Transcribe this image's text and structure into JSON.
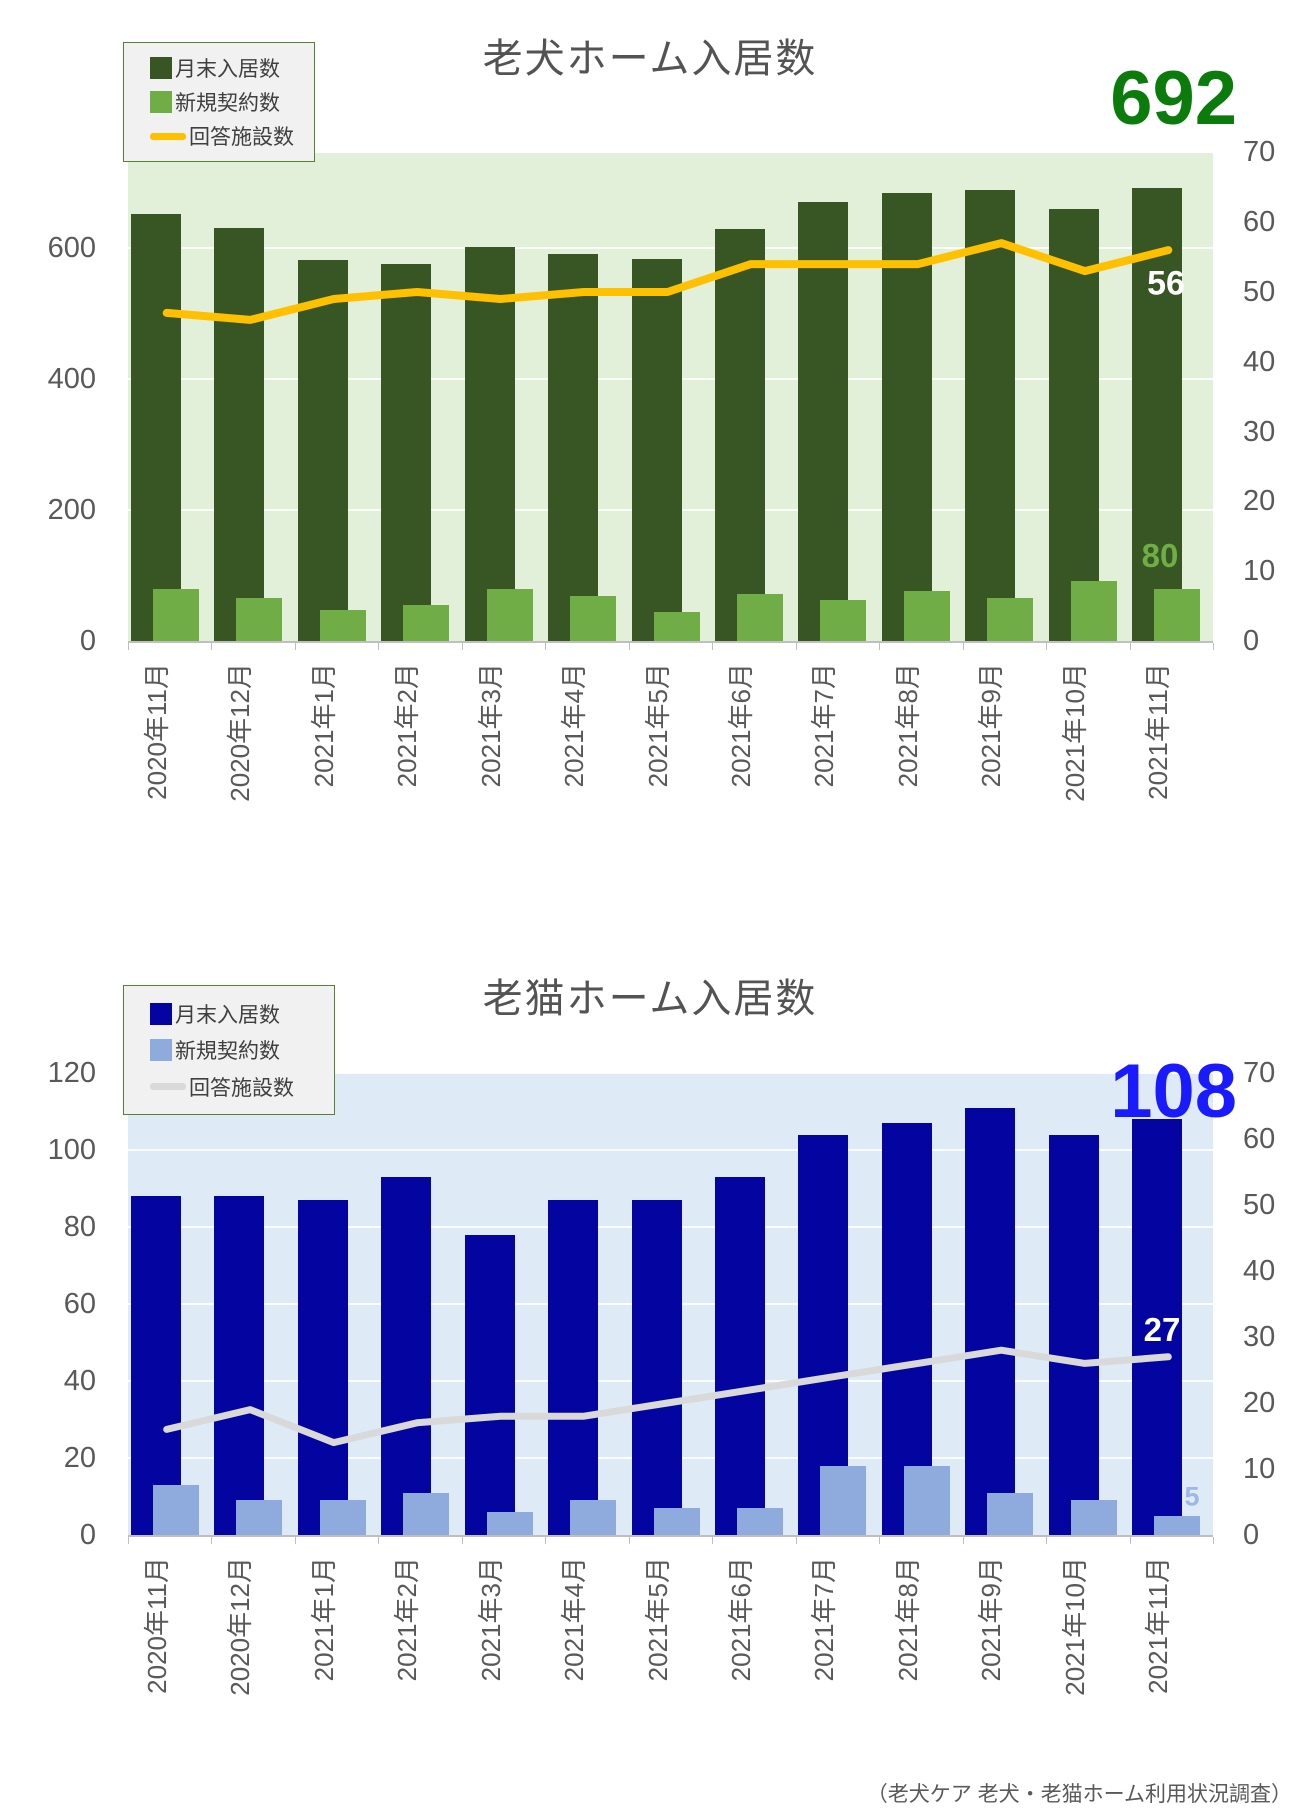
{
  "footer": {
    "source": "（老犬ケア 老犬・老猫ホーム利用状況調査）"
  },
  "chart_data": [
    {
      "id": "dog-home-chart",
      "type": "bar",
      "title": "老犬ホーム入居数",
      "plot_bg": "#E2EFD9",
      "categories": [
        "2020年11月",
        "2020年12月",
        "2021年1月",
        "2021年2月",
        "2021年3月",
        "2021年4月",
        "2021年5月",
        "2021年6月",
        "2021年7月",
        "2021年8月",
        "2021年9月",
        "2021年10月",
        "2021年11月"
      ],
      "series": [
        {
          "name": "月末入居数",
          "type": "bar",
          "axis": "left",
          "color": "#375623",
          "values": [
            652,
            630,
            581,
            576,
            602,
            591,
            583,
            629,
            670,
            684,
            688,
            660,
            692
          ]
        },
        {
          "name": "新規契約数",
          "type": "bar",
          "axis": "left",
          "color": "#70AD47",
          "values": [
            80,
            65,
            47,
            55,
            80,
            69,
            44,
            72,
            62,
            76,
            66,
            91,
            80
          ]
        },
        {
          "name": "回答施設数",
          "type": "line",
          "axis": "right",
          "color": "#FFC000",
          "values": [
            47,
            46,
            49,
            50,
            49,
            50,
            50,
            54,
            54,
            54,
            57,
            53,
            56
          ]
        }
      ],
      "left_axis": {
        "ticks": [
          0,
          200,
          400,
          600
        ],
        "max": 700
      },
      "right_axis": {
        "ticks": [
          0,
          10,
          20,
          30,
          40,
          50,
          60,
          70
        ],
        "max": 70
      },
      "grid_values": [
        200,
        400,
        600
      ],
      "legend_position": "top-left",
      "annotations": [
        {
          "name": "latest-occupancy-callout",
          "text": "692",
          "color": "#0B7B0B"
        },
        {
          "name": "facilities-last-label",
          "text": "56",
          "color": "#FFFFFF"
        },
        {
          "name": "contracts-last-label",
          "text": "80",
          "color": "#70AD47"
        }
      ]
    },
    {
      "id": "cat-home-chart",
      "type": "bar",
      "title": "老猫ホーム入居数",
      "plot_bg": "#DEEBF7",
      "categories": [
        "2020年11月",
        "2020年12月",
        "2021年1月",
        "2021年2月",
        "2021年3月",
        "2021年4月",
        "2021年5月",
        "2021年6月",
        "2021年7月",
        "2021年8月",
        "2021年9月",
        "2021年10月",
        "2021年11月"
      ],
      "series": [
        {
          "name": "月末入居数",
          "type": "bar",
          "axis": "left",
          "color": "#0404A0",
          "values": [
            88,
            88,
            87,
            93,
            78,
            87,
            87,
            93,
            104,
            107,
            111,
            104,
            108
          ]
        },
        {
          "name": "新規契約数",
          "type": "bar",
          "axis": "left",
          "color": "#8FAADC",
          "values": [
            13,
            9,
            9,
            11,
            6,
            9,
            7,
            7,
            18,
            18,
            11,
            9,
            5
          ]
        },
        {
          "name": "回答施設数",
          "type": "line",
          "axis": "right",
          "color": "#D9D9D9",
          "values": [
            16,
            19,
            14,
            17,
            18,
            18,
            20,
            22,
            24,
            26,
            28,
            26,
            27
          ]
        }
      ],
      "left_axis": {
        "ticks": [
          0,
          20,
          40,
          60,
          80,
          100,
          120
        ],
        "max": 120
      },
      "right_axis": {
        "ticks": [
          0,
          10,
          20,
          30,
          40,
          50,
          60,
          70
        ],
        "max": 70
      },
      "grid_values": [
        20,
        40,
        60,
        80,
        100,
        120
      ],
      "legend_position": "top-left",
      "annotations": [
        {
          "name": "latest-occupancy-callout",
          "text": "108",
          "color": "#1A1AFF"
        },
        {
          "name": "facilities-last-label",
          "text": "27",
          "color": "#FFFFFF"
        },
        {
          "name": "contracts-last-label",
          "text": "5",
          "color": "#9CB8E5"
        }
      ]
    }
  ]
}
